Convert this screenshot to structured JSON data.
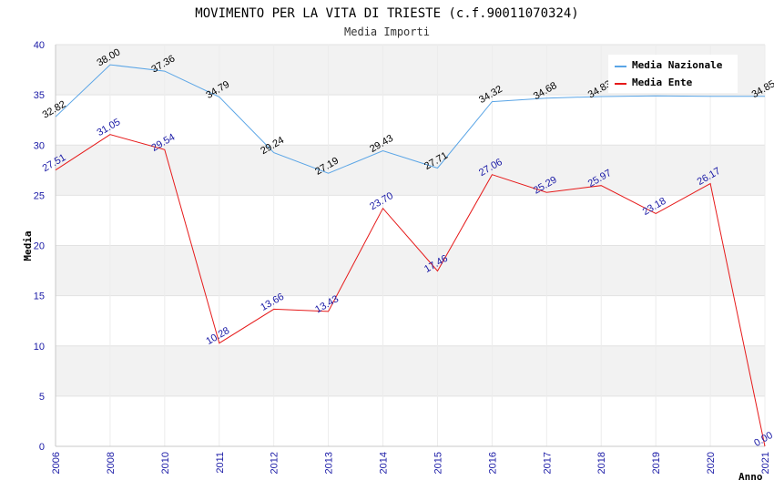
{
  "chart_data": {
    "type": "line",
    "title": "MOVIMENTO PER LA VITA DI TRIESTE (c.f.90011070324)",
    "subtitle": "Media Importi",
    "xlabel": "Anno",
    "ylabel": "Media",
    "ylim": [
      0,
      40
    ],
    "yticks": [
      "0",
      "5",
      "10",
      "15",
      "20",
      "25",
      "30",
      "35",
      "40"
    ],
    "categories": [
      "2006",
      "2008",
      "2010",
      "2011",
      "2012",
      "2013",
      "2014",
      "2015",
      "2016",
      "2017",
      "2018",
      "2019",
      "2020",
      "2021"
    ],
    "legend_position": "top-right",
    "series": [
      {
        "name": "Media Nazionale",
        "color": "#5aa5e6",
        "values": [
          32.82,
          38.0,
          37.36,
          34.79,
          29.24,
          27.19,
          29.43,
          27.71,
          34.32,
          34.68,
          34.83,
          34.9,
          34.85,
          34.85
        ],
        "labels": [
          "32.82",
          "38.00",
          "37.36",
          "34.79",
          "29.24",
          "27.19",
          "29.43",
          "27.71",
          "34.32",
          "34.68",
          "34.83",
          "",
          "",
          "34.85"
        ]
      },
      {
        "name": "Media Ente",
        "color": "#e61919",
        "values": [
          27.51,
          31.05,
          29.54,
          10.28,
          13.66,
          13.43,
          23.7,
          17.46,
          27.06,
          25.29,
          25.97,
          23.18,
          26.17,
          0.0
        ],
        "labels": [
          "27.51",
          "31.05",
          "29.54",
          "10.28",
          "13.66",
          "13.43",
          "23.70",
          "17.46",
          "27.06",
          "25.29",
          "25.97",
          "23.18",
          "26.17",
          "0.00"
        ]
      }
    ]
  }
}
